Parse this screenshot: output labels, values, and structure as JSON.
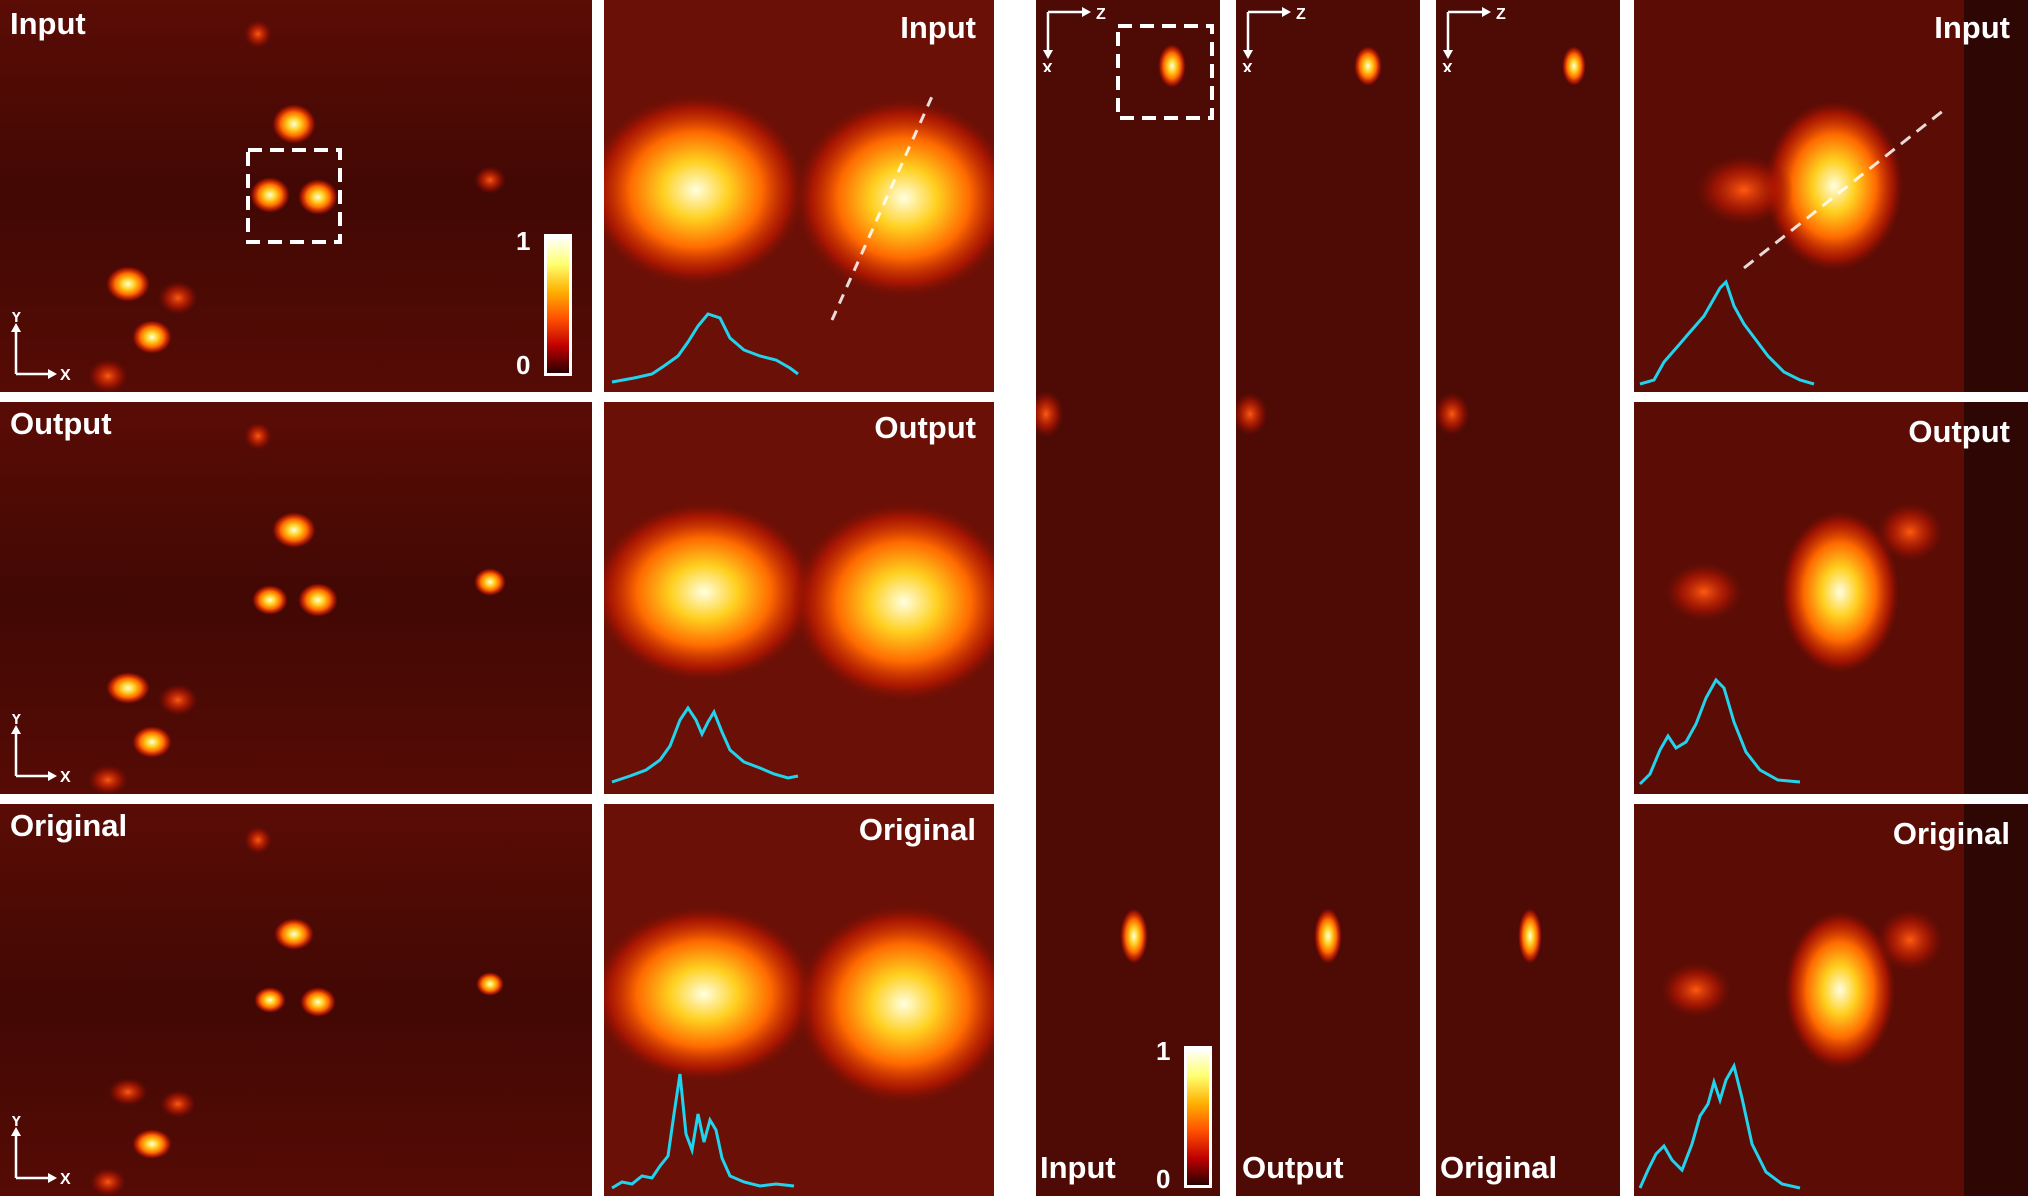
{
  "panel_labels": {
    "xy_input": "Input",
    "xy_output": "Output",
    "xy_original": "Original",
    "zoom_input": "Input",
    "zoom_output": "Output",
    "zoom_original": "Original",
    "xz_input": "Input",
    "xz_output": "Output",
    "xz_original": "Original",
    "xzoom_input": "Input",
    "xzoom_output": "Output",
    "xzoom_original": "Original"
  },
  "axes": {
    "xy": {
      "vertical": "Y",
      "horizontal": "X"
    },
    "xz": {
      "horizontal": "Z",
      "vertical": "X"
    }
  },
  "colorbar": {
    "max": "1",
    "min": "0"
  },
  "colors": {
    "background_dark": "#4a0a04",
    "line_profile": "#22d3ee",
    "annotation": "#ffffff"
  }
}
